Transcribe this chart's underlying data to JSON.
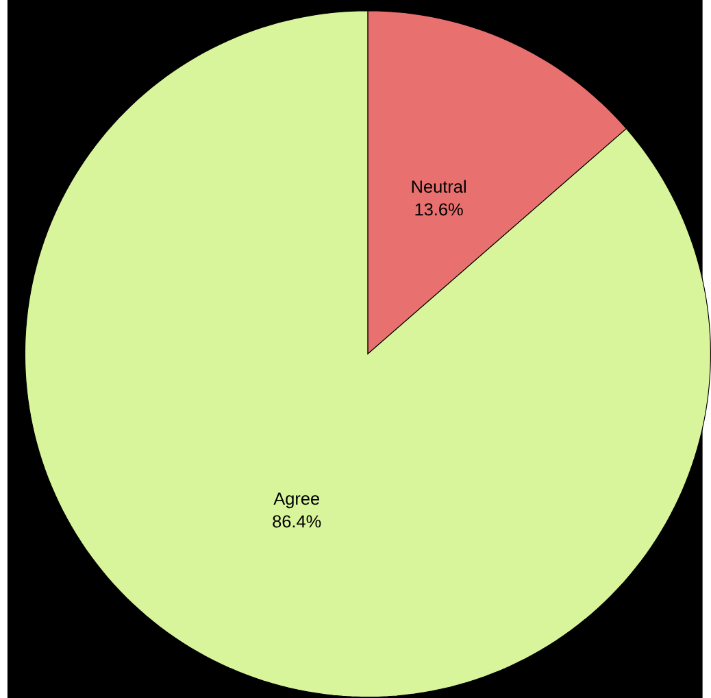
{
  "chart_data": {
    "type": "pie",
    "categories": [
      "Neutral",
      "Agree"
    ],
    "values": [
      13.6,
      86.4
    ],
    "colors": [
      "#e8716f",
      "#d9f59c"
    ],
    "value_labels": [
      "13.6%",
      "86.4%"
    ]
  }
}
